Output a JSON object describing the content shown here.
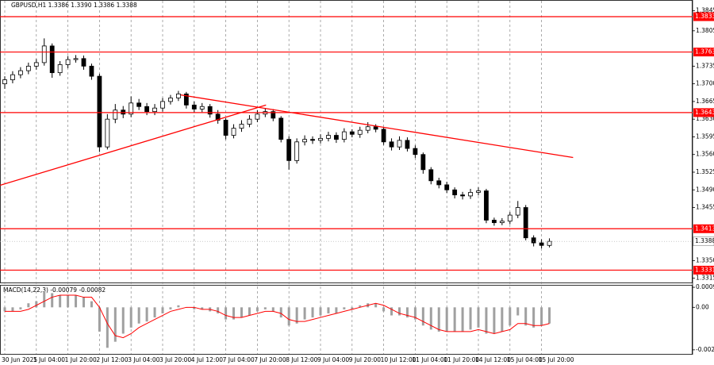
{
  "chart_data": [
    {
      "type": "candlestick",
      "title": "GBPUSD,H1  1.3386 1.3390 1.3386 1.3388",
      "categories": [
        "30 Jun 2025",
        null,
        null,
        null,
        "1 Jul 04:00",
        null,
        null,
        null,
        "1 Jul 20:00",
        null,
        null,
        null,
        "2 Jul 12:00",
        null,
        null,
        null,
        "3 Jul 04:00",
        null,
        null,
        null,
        "3 Jul 20:00",
        null,
        null,
        null,
        "4 Jul 12:00",
        null,
        null,
        null,
        "7 Jul 04:00",
        null,
        null,
        null,
        "7 Jul 20:00",
        null,
        null,
        null,
        "8 Jul 12:00",
        null,
        null,
        null,
        "9 Jul 04:00",
        null,
        null,
        null,
        "9 Jul 20:00",
        null,
        null,
        null,
        "10 Jul 12:00",
        null,
        null,
        null,
        "11 Jul 04:00",
        null,
        null,
        null,
        "11 Jul 20:00",
        null,
        null,
        null,
        "14 Jul 12:00",
        null,
        null,
        null,
        "15 Jul 04:00",
        null,
        null,
        null,
        "15 Jul 20:00",
        null
      ],
      "open": [
        1.37,
        1.3708,
        1.3718,
        1.3726,
        1.3735,
        1.3742,
        1.3775,
        1.3722,
        1.3738,
        1.3748,
        1.375,
        1.3735,
        1.3715,
        1.3575,
        1.363,
        1.3648,
        1.364,
        1.3662,
        1.3655,
        1.3645,
        1.3652,
        1.3665,
        1.3672,
        1.368,
        1.3658,
        1.365,
        1.3655,
        1.364,
        1.3628,
        1.3598,
        1.3612,
        1.362,
        1.363,
        1.364,
        1.3645,
        1.3632,
        1.359,
        1.3548,
        1.3585,
        1.359,
        1.3588,
        1.3592,
        1.3598,
        1.359,
        1.3605,
        1.36,
        1.3608,
        1.3615,
        1.361,
        1.3585,
        1.3575,
        1.3588,
        1.3572,
        1.356,
        1.353,
        1.3508,
        1.35,
        1.349,
        1.348,
        1.3478,
        1.3485,
        1.3488,
        1.343,
        1.3425,
        1.3428,
        1.344,
        1.3455,
        1.3395,
        1.3385,
        1.338
      ],
      "high": [
        1.3715,
        1.3725,
        1.3733,
        1.3742,
        1.3749,
        1.379,
        1.378,
        1.3745,
        1.3755,
        1.3757,
        1.3756,
        1.374,
        1.372,
        1.364,
        1.366,
        1.3656,
        1.3675,
        1.367,
        1.3662,
        1.366,
        1.3672,
        1.3678,
        1.3686,
        1.3684,
        1.3665,
        1.3662,
        1.366,
        1.3648,
        1.3632,
        1.362,
        1.3628,
        1.3638,
        1.3648,
        1.3652,
        1.365,
        1.3636,
        1.3596,
        1.3592,
        1.3598,
        1.3596,
        1.36,
        1.3605,
        1.3604,
        1.3612,
        1.361,
        1.3615,
        1.3624,
        1.362,
        1.3614,
        1.3592,
        1.3596,
        1.3594,
        1.3578,
        1.3564,
        1.3535,
        1.3514,
        1.3506,
        1.3495,
        1.3486,
        1.3492,
        1.3495,
        1.3492,
        1.3435,
        1.3434,
        1.3446,
        1.3468,
        1.346,
        1.34,
        1.3392,
        1.3394
      ],
      "low": [
        1.369,
        1.3701,
        1.3711,
        1.3719,
        1.3728,
        1.3736,
        1.3712,
        1.3716,
        1.3731,
        1.3742,
        1.3728,
        1.3708,
        1.3565,
        1.357,
        1.3622,
        1.3632,
        1.3634,
        1.3648,
        1.3638,
        1.3638,
        1.3645,
        1.3659,
        1.3666,
        1.3651,
        1.3643,
        1.3644,
        1.3633,
        1.3621,
        1.359,
        1.3592,
        1.3605,
        1.3614,
        1.3624,
        1.3634,
        1.3626,
        1.3584,
        1.353,
        1.3542,
        1.3578,
        1.3581,
        1.3582,
        1.3586,
        1.3583,
        1.3584,
        1.3594,
        1.3593,
        1.3602,
        1.3604,
        1.3579,
        1.3568,
        1.3569,
        1.3566,
        1.3553,
        1.3522,
        1.3501,
        1.3493,
        1.3484,
        1.3473,
        1.3471,
        1.3472,
        1.3479,
        1.3424,
        1.3419,
        1.342,
        1.3422,
        1.3434,
        1.339,
        1.3378,
        1.3374,
        1.3376
      ],
      "close": [
        1.3708,
        1.3718,
        1.3726,
        1.3735,
        1.3742,
        1.3775,
        1.3722,
        1.3738,
        1.3748,
        1.375,
        1.3735,
        1.3715,
        1.3575,
        1.363,
        1.3648,
        1.364,
        1.3662,
        1.3655,
        1.3645,
        1.3652,
        1.3665,
        1.3672,
        1.368,
        1.3658,
        1.365,
        1.3655,
        1.364,
        1.3628,
        1.3598,
        1.3612,
        1.362,
        1.363,
        1.364,
        1.3645,
        1.3632,
        1.359,
        1.3548,
        1.3585,
        1.359,
        1.3588,
        1.3592,
        1.3598,
        1.359,
        1.3605,
        1.36,
        1.3608,
        1.3615,
        1.361,
        1.3585,
        1.3575,
        1.3588,
        1.3572,
        1.356,
        1.353,
        1.3508,
        1.35,
        1.349,
        1.348,
        1.3478,
        1.3485,
        1.3488,
        1.343,
        1.3425,
        1.3428,
        1.344,
        1.3455,
        1.3395,
        1.3385,
        1.338,
        1.3388
      ],
      "ylim": [
        1.3305,
        1.3866
      ],
      "yticks": [
        1.3845,
        1.3805,
        1.3735,
        {
          "value": 1.37,
          "label": "1.3700"
        },
        1.3665,
        {
          "value": 1.363,
          "label": "1.3630"
        },
        1.3595,
        {
          "value": 1.356,
          "label": "1.3560"
        },
        1.3525,
        {
          "value": 1.349,
          "label": "1.3490"
        },
        1.3455,
        {
          "value": 1.335,
          "label": "1.3350"
        },
        1.3315
      ],
      "levels": {
        "values": [
          1.3833,
          1.3763,
          1.3643,
          1.3413,
          1.3331
        ],
        "color": "#ff0000"
      },
      "last_price": 1.3388,
      "trendlines": {
        "color": "#ff0000",
        "lines": [
          {
            "x": [
              -0.6,
              33.1
            ],
            "y": [
              1.3499,
              1.3658
            ]
          },
          {
            "x": [
              22.3,
              72.0
            ],
            "y": [
              1.3678,
              1.3554
            ]
          }
        ]
      }
    },
    {
      "type": "macd",
      "title": "MACD(14,22,3) -0.00079 -0.00082",
      "histogram": [
        -0.0002,
        -0.0002,
        -0.0001,
        0.0002,
        0.0003,
        0.0008,
        0.0007,
        0.0006,
        0.0006,
        0.0006,
        0.0005,
        0.0003,
        -0.0012,
        -0.002,
        -0.0017,
        -0.0013,
        -0.001,
        -0.0008,
        -0.0007,
        -0.0005,
        -0.0003,
        -0.0001,
        0.0001,
        0.0,
        -0.0001,
        -0.0001,
        -0.0002,
        -0.0003,
        -0.0006,
        -0.0006,
        -0.0005,
        -0.0004,
        -0.0002,
        -0.0001,
        -0.0002,
        -0.0005,
        -0.0009,
        -0.0008,
        -0.0006,
        -0.0005,
        -0.0004,
        -0.0003,
        -0.0003,
        -0.0001,
        -0.0001,
        0.0001,
        0.0002,
        0.0002,
        -0.0002,
        -0.0004,
        -0.0004,
        -0.0005,
        -0.0006,
        -0.0009,
        -0.0011,
        -0.0012,
        -0.0012,
        -0.0012,
        -0.0012,
        -0.0011,
        -0.001,
        -0.0013,
        -0.0013,
        -0.0012,
        -0.0009,
        -0.0004,
        -0.0009,
        -0.001,
        -0.0009,
        -0.0008
      ],
      "signal": [
        -0.0002,
        -0.0002,
        -0.0002,
        -0.0001,
        0.0001,
        0.0003,
        0.0005,
        0.0006,
        0.0006,
        0.0006,
        0.0005,
        0.0005,
        0.0,
        -0.0008,
        -0.0014,
        -0.0015,
        -0.0013,
        -0.001,
        -0.0008,
        -0.0006,
        -0.0004,
        -0.0002,
        -0.0001,
        0.0,
        0.0,
        -0.0001,
        -0.0001,
        -0.0002,
        -0.0004,
        -0.0005,
        -0.0005,
        -0.0004,
        -0.0003,
        -0.0002,
        -0.0002,
        -0.0003,
        -0.0006,
        -0.0007,
        -0.0007,
        -0.0006,
        -0.0005,
        -0.0004,
        -0.0003,
        -0.0002,
        -0.0001,
        0.0,
        0.0001,
        0.0002,
        0.0001,
        -0.0001,
        -0.0003,
        -0.0004,
        -0.0005,
        -0.0007,
        -0.0009,
        -0.0011,
        -0.0012,
        -0.0012,
        -0.0012,
        -0.0012,
        -0.0011,
        -0.0012,
        -0.0013,
        -0.0012,
        -0.0011,
        -0.0008,
        -0.0008,
        -0.0009,
        -0.0009,
        -0.0008
      ],
      "histogram_color": "#a0a0a0",
      "signal_color": "#ff0000",
      "ylim": [
        -0.00234,
        0.00111
      ],
      "yticks": [
        0.00099,
        {
          "value": 0,
          "label": "0.00"
        },
        -0.0021
      ]
    }
  ]
}
